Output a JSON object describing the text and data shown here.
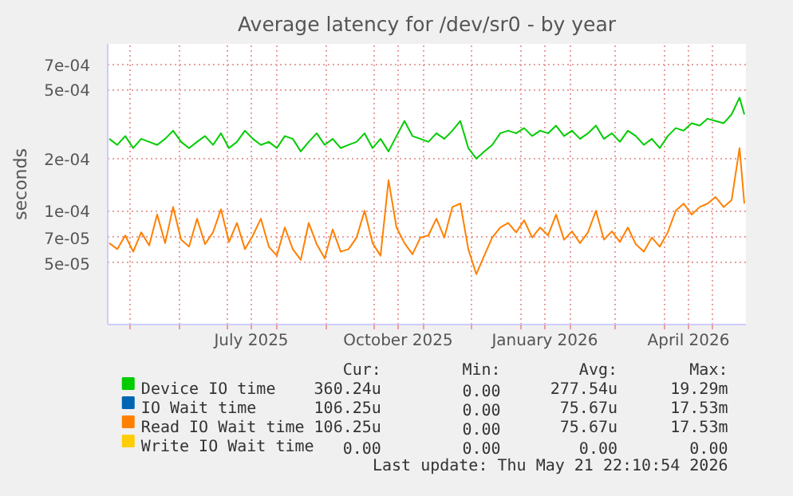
{
  "chart_data": {
    "type": "line",
    "title": "Average latency for /dev/sr0 - by year",
    "ylabel": "seconds",
    "log": "y",
    "grid": true,
    "legend": "bottom",
    "line_style": "solid",
    "marker": "none",
    "xlim": [
      "2025-04-17",
      "2026-05-22"
    ],
    "xticks": [
      {
        "value": "2025-05-01",
        "label": null
      },
      {
        "value": "2025-06-01",
        "label": null
      },
      {
        "value": "2025-07-01",
        "label": null
      },
      {
        "value": "2025-07-16",
        "label": "July 2025"
      },
      {
        "value": "2025-08-01",
        "label": null
      },
      {
        "value": "2025-09-01",
        "label": null
      },
      {
        "value": "2025-10-01",
        "label": null
      },
      {
        "value": "2025-10-16",
        "label": "October 2025"
      },
      {
        "value": "2025-11-01",
        "label": null
      },
      {
        "value": "2025-12-01",
        "label": null
      },
      {
        "value": "2026-01-01",
        "label": null
      },
      {
        "value": "2026-01-16",
        "label": "January 2026"
      },
      {
        "value": "2026-02-01",
        "label": null
      },
      {
        "value": "2026-03-01",
        "label": null
      },
      {
        "value": "2026-04-01",
        "label": null
      },
      {
        "value": "2026-04-16",
        "label": "April 2026"
      },
      {
        "value": "2026-05-01",
        "label": null
      }
    ],
    "ylim": [
      2.2e-05,
      0.00092
    ],
    "yticks": [
      {
        "value": 5e-05,
        "label": "5e-05"
      },
      {
        "value": 7e-05,
        "label": "7e-05"
      },
      {
        "value": 0.0001,
        "label": "1e-04"
      },
      {
        "value": 0.0002,
        "label": "2e-04"
      },
      {
        "value": 0.0005,
        "label": "5e-04"
      },
      {
        "value": 0.0007,
        "label": "7e-04"
      }
    ],
    "x": [
      "2025-04-18",
      "2025-04-23",
      "2025-04-28",
      "2025-05-03",
      "2025-05-08",
      "2025-05-13",
      "2025-05-18",
      "2025-05-23",
      "2025-05-28",
      "2025-06-02",
      "2025-06-07",
      "2025-06-12",
      "2025-06-17",
      "2025-06-22",
      "2025-06-27",
      "2025-07-02",
      "2025-07-07",
      "2025-07-12",
      "2025-07-17",
      "2025-07-22",
      "2025-07-27",
      "2025-08-01",
      "2025-08-06",
      "2025-08-11",
      "2025-08-16",
      "2025-08-21",
      "2025-08-26",
      "2025-08-31",
      "2025-09-05",
      "2025-09-10",
      "2025-09-15",
      "2025-09-20",
      "2025-09-25",
      "2025-09-30",
      "2025-10-05",
      "2025-10-10",
      "2025-10-15",
      "2025-10-20",
      "2025-10-25",
      "2025-10-30",
      "2025-11-04",
      "2025-11-09",
      "2025-11-14",
      "2025-11-19",
      "2025-11-24",
      "2025-11-29",
      "2025-12-04",
      "2025-12-09",
      "2025-12-14",
      "2025-12-19",
      "2025-12-24",
      "2025-12-29",
      "2026-01-03",
      "2026-01-08",
      "2026-01-13",
      "2026-01-18",
      "2026-01-23",
      "2026-01-28",
      "2026-02-02",
      "2026-02-07",
      "2026-02-12",
      "2026-02-17",
      "2026-02-22",
      "2026-02-27",
      "2026-03-04",
      "2026-03-09",
      "2026-03-14",
      "2026-03-19",
      "2026-03-24",
      "2026-03-29",
      "2026-04-03",
      "2026-04-08",
      "2026-04-13",
      "2026-04-18",
      "2026-04-23",
      "2026-04-28",
      "2026-05-03",
      "2026-05-08",
      "2026-05-13",
      "2026-05-18",
      "2026-05-21"
    ],
    "series": [
      {
        "name": "Device IO time",
        "color": "#00cc00",
        "values": [
          0.00026,
          0.00024,
          0.00027,
          0.00023,
          0.00026,
          0.00025,
          0.00024,
          0.00026,
          0.00029,
          0.00025,
          0.00023,
          0.00025,
          0.00027,
          0.00024,
          0.00028,
          0.00023,
          0.00025,
          0.00029,
          0.00026,
          0.00024,
          0.00025,
          0.00023,
          0.00027,
          0.00026,
          0.00022,
          0.00025,
          0.00028,
          0.00024,
          0.00026,
          0.00023,
          0.00024,
          0.00025,
          0.00028,
          0.00023,
          0.00026,
          0.00022,
          0.00027,
          0.00033,
          0.00027,
          0.00026,
          0.00025,
          0.00028,
          0.00026,
          0.00029,
          0.00033,
          0.00023,
          0.0002,
          0.00022,
          0.00024,
          0.00028,
          0.00029,
          0.00028,
          0.0003,
          0.00027,
          0.00029,
          0.00028,
          0.00031,
          0.00027,
          0.00029,
          0.00026,
          0.00028,
          0.00031,
          0.00026,
          0.00028,
          0.00025,
          0.00029,
          0.00027,
          0.00024,
          0.00026,
          0.00023,
          0.00027,
          0.0003,
          0.00029,
          0.00032,
          0.00031,
          0.00034,
          0.00033,
          0.00032,
          0.00036,
          0.00045,
          0.00036
        ]
      },
      {
        "name": "IO Wait time",
        "color": "#0066b3",
        "values": [
          null,
          null,
          null,
          null,
          null,
          null,
          null,
          null,
          null,
          null,
          null,
          null,
          null,
          null,
          null,
          null,
          null,
          null,
          null,
          null,
          null,
          null,
          null,
          null,
          null,
          null,
          null,
          null,
          null,
          null,
          null,
          null,
          null,
          null,
          null,
          null,
          null,
          null,
          null,
          null,
          null,
          null,
          null,
          null,
          null,
          null,
          null,
          null,
          null,
          null,
          null,
          null,
          null,
          null,
          null,
          null,
          null,
          null,
          null,
          null,
          null,
          null,
          null,
          null,
          null,
          null,
          null,
          null,
          null,
          null,
          null,
          null,
          null,
          null,
          null,
          null,
          null,
          null,
          null,
          null,
          null
        ]
      },
      {
        "name": "Read IO Wait time",
        "color": "#ff8000",
        "values": [
          6.5e-05,
          6e-05,
          7.2e-05,
          5.8e-05,
          7.5e-05,
          6.3e-05,
          9.5e-05,
          6.5e-05,
          0.000105,
          6.8e-05,
          6.2e-05,
          9e-05,
          6.4e-05,
          7.5e-05,
          0.000102,
          6.6e-05,
          8.5e-05,
          6e-05,
          7.2e-05,
          9e-05,
          6.2e-05,
          5.5e-05,
          8e-05,
          6e-05,
          5.2e-05,
          8.5e-05,
          6.4e-05,
          5.3e-05,
          7.8e-05,
          5.8e-05,
          6e-05,
          7e-05,
          0.0001,
          6.5e-05,
          5.5e-05,
          0.00015,
          8e-05,
          6.5e-05,
          5.6e-05,
          7e-05,
          7.2e-05,
          9e-05,
          7e-05,
          0.000105,
          0.00011,
          6e-05,
          4.3e-05,
          5.5e-05,
          7e-05,
          8e-05,
          8.5e-05,
          7.5e-05,
          8.8e-05,
          7e-05,
          8e-05,
          7.2e-05,
          9.5e-05,
          6.8e-05,
          7.6e-05,
          6.5e-05,
          7.5e-05,
          0.0001,
          6.8e-05,
          7.6e-05,
          6.6e-05,
          8e-05,
          6.4e-05,
          5.8e-05,
          7e-05,
          6.2e-05,
          7.5e-05,
          0.0001,
          0.00011,
          9.5e-05,
          0.000105,
          0.00011,
          0.00012,
          0.000105,
          0.000115,
          0.00023,
          0.00011
        ]
      },
      {
        "name": "Write IO Wait time",
        "color": "#ffcc00",
        "values": [
          null,
          null,
          null,
          null,
          null,
          null,
          null,
          null,
          null,
          null,
          null,
          null,
          null,
          null,
          null,
          null,
          null,
          null,
          null,
          null,
          null,
          null,
          null,
          null,
          null,
          null,
          null,
          null,
          null,
          null,
          null,
          null,
          null,
          null,
          null,
          null,
          null,
          null,
          null,
          null,
          null,
          null,
          null,
          null,
          null,
          null,
          null,
          null,
          null,
          null,
          null,
          null,
          null,
          null,
          null,
          null,
          null,
          null,
          null,
          null,
          null,
          null,
          null,
          null,
          null,
          null,
          null,
          null,
          null,
          null,
          null,
          null,
          null,
          null,
          null,
          null,
          null,
          null,
          null,
          null,
          null
        ]
      }
    ],
    "annotations": [
      "Cur:",
      "Min:",
      "Avg:",
      "Max:",
      "360.24u",
      "0.00",
      "277.54u",
      "19.29m",
      "106.25u",
      "0.00",
      "75.67u",
      "17.53m",
      "106.25u",
      "0.00",
      "75.67u",
      "17.53m",
      "0.00",
      "0.00",
      "0.00",
      "0.00",
      "Last update: Thu May 21 22:10:54 2026"
    ]
  }
}
